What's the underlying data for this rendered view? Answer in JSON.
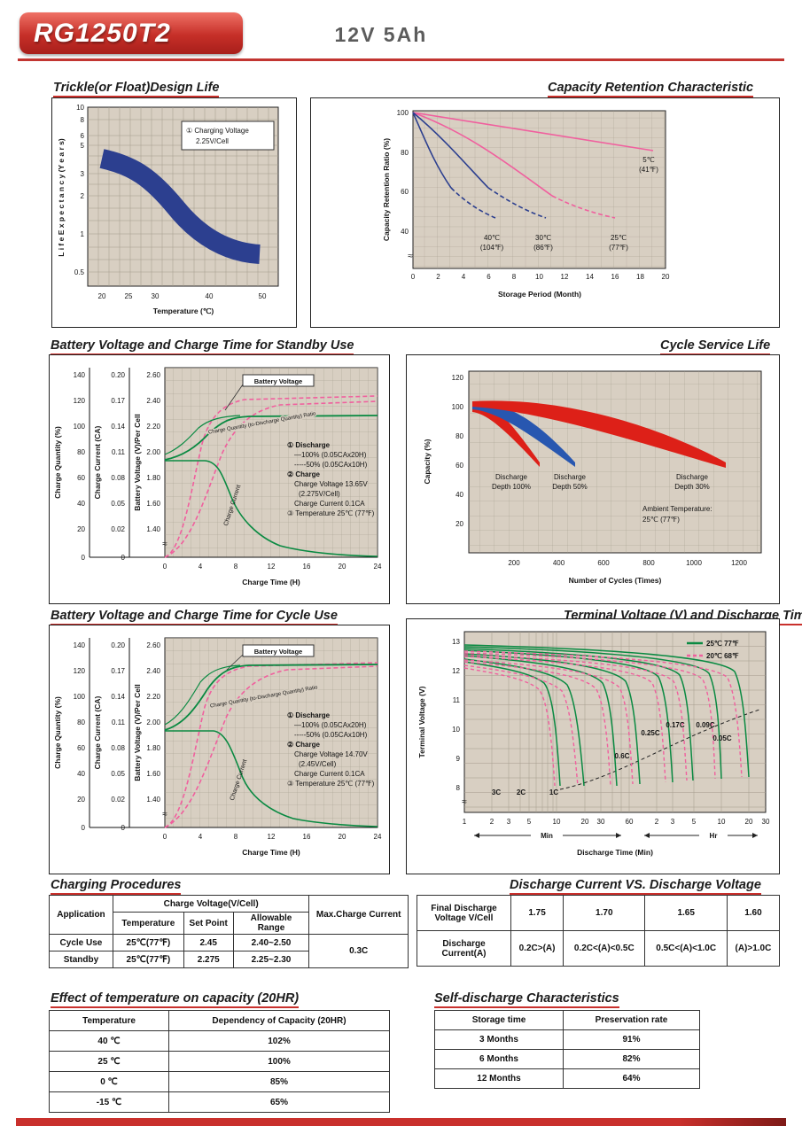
{
  "header": {
    "model": "RG1250T2",
    "spec": "12V  5Ah"
  },
  "colors": {
    "accent_red": "#c9302c",
    "plot_beige": "#d8cfc2",
    "curve_green": "#0a8a42",
    "curve_pink": "#f0609e",
    "curve_navy": "#2c3f8f",
    "band_red": "#dd2018",
    "band_blue": "#2857b0"
  },
  "charts": {
    "trickle": {
      "title": "Trickle(or Float)Design Life",
      "y_ticks": [
        "10",
        "8",
        "6",
        "5",
        "3",
        "2",
        "1",
        "0.5"
      ],
      "x_ticks": [
        "20",
        "25",
        "30",
        "40",
        "50"
      ],
      "x_label": "Temperature (℃)",
      "y_label": "L i f e  E x p e c t a n c y (Y e a r s)",
      "legend_1": "① Charging Voltage",
      "legend_2": "2.25V/Cell"
    },
    "retention": {
      "title": "Capacity Retention Characteristic",
      "y_ticks": [
        "100",
        "80",
        "60",
        "40"
      ],
      "x_ticks": [
        "0",
        "2",
        "4",
        "6",
        "8",
        "10",
        "12",
        "14",
        "16",
        "18",
        "20"
      ],
      "x_label": "Storage Period (Month)",
      "y_label": "Capacity Retention Ratio (%)",
      "break_mark": "≈",
      "series_labels": {
        "s5": [
          "5℃",
          "(41℉)"
        ],
        "s25": [
          "25℃",
          "(77℉)"
        ],
        "s30": [
          "30℃",
          "(86℉)"
        ],
        "s40": [
          "40℃",
          "(104℉)"
        ]
      }
    },
    "standby": {
      "title": "Battery Voltage and Charge Time for Standby Use",
      "qty_label": "Charge Quantity (%)",
      "qty_ticks": [
        "140",
        "120",
        "100",
        "80",
        "60",
        "40",
        "20",
        "0"
      ],
      "cur_label": "Charge Current (CA)",
      "cur_ticks": [
        "0.20",
        "0.17",
        "0.14",
        "0.11",
        "0.08",
        "0.05",
        "0.02",
        "0"
      ],
      "volt_label": "Battery Voltage (V)/Per Cell",
      "volt_ticks": [
        "2.60",
        "2.40",
        "2.20",
        "2.00",
        "1.80",
        "1.60",
        "1.40"
      ],
      "x_ticks": [
        "0",
        "4",
        "8",
        "12",
        "16",
        "20",
        "24"
      ],
      "x_label": "Charge Time (H)",
      "bv_label": "Battery Voltage",
      "qc_label": "Charge Quantity (to-Discharge Quantity) Ratio",
      "cc_label": "Charge Current",
      "break_mark": "≈",
      "notes": [
        "① Discharge",
        "—100% (0.05CAx20H)",
        "-----50% (0.05CAx10H)",
        "② Charge",
        "Charge Voltage 13.65V",
        "(2.275V/Cell)",
        "Charge Current 0.1CA",
        "③ Temperature 25℃ (77℉)"
      ]
    },
    "cycle_life": {
      "title": "Cycle Service Life",
      "y_label": "Capacity (%)",
      "y_ticks": [
        "120",
        "100",
        "80",
        "60",
        "40",
        "20"
      ],
      "x_ticks": [
        "200",
        "400",
        "600",
        "800",
        "1000",
        "1200"
      ],
      "x_label": "Number of Cycles (Times)",
      "band_labels": [
        [
          "Discharge",
          "Depth 100%"
        ],
        [
          "Discharge",
          "Depth 50%"
        ],
        [
          "Discharge",
          "Depth 30%"
        ]
      ],
      "ambient": [
        "Ambient Temperature:",
        "25℃ (77℉)"
      ]
    },
    "cycle_charge": {
      "title": "Battery Voltage and Charge Time for Cycle Use",
      "qty_label": "Charge Quantity (%)",
      "qty_ticks": [
        "140",
        "120",
        "100",
        "80",
        "60",
        "40",
        "20",
        "0"
      ],
      "cur_label": "Charge Current (CA)",
      "cur_ticks": [
        "0.20",
        "0.17",
        "0.14",
        "0.11",
        "0.08",
        "0.05",
        "0.02",
        "0"
      ],
      "volt_label": "Battery Voltage (V)/Per Cell",
      "volt_ticks": [
        "2.60",
        "2.40",
        "2.20",
        "2.00",
        "1.80",
        "1.60",
        "1.40"
      ],
      "x_ticks": [
        "0",
        "4",
        "8",
        "12",
        "16",
        "20",
        "24"
      ],
      "x_label": "Charge Time (H)",
      "bv_label": "Battery Voltage",
      "qc_label": "Charge Quantity (to-Discharge Quantity) Ratio",
      "cc_label": "Charge Current",
      "break_mark": "≈",
      "notes": [
        "① Discharge",
        "—100% (0.05CAx20H)",
        "-----50% (0.05CAx10H)",
        "② Charge",
        "Charge Voltage 14.70V",
        "(2.45V/Cell)",
        "Charge Current 0.1CA",
        "③ Temperature 25℃ (77℉)"
      ]
    },
    "terminal": {
      "title": "Terminal Voltage (V) and Discharge Time",
      "y_label": "Terminal Voltage (V)",
      "y_ticks": [
        "13",
        "12",
        "11",
        "10",
        "9",
        "8"
      ],
      "x_ticks_min": [
        "1",
        "2",
        "3",
        "5",
        "10",
        "20",
        "30",
        "60"
      ],
      "x_ticks_hr": [
        "2",
        "3",
        "5",
        "10",
        "20",
        "30"
      ],
      "min_label": "Min",
      "hr_label": "Hr",
      "x_label": "Discharge Time (Min)",
      "break_mark": "≈",
      "legend": [
        "25℃ 77℉",
        "20℃ 68℉"
      ],
      "rate_labels": [
        "3C",
        "2C",
        "1C",
        "0.6C",
        "0.25C",
        "0.17C",
        "0.09C",
        "0.05C"
      ]
    }
  },
  "tables": {
    "charging": {
      "title": "Charging Procedures",
      "col_application": "Application",
      "col_voltage": "Charge Voltage(V/Cell)",
      "col_temp": "Temperature",
      "col_set": "Set Point",
      "col_range": "Allowable Range",
      "col_max": "Max.Charge Current",
      "rows": [
        {
          "app": "Cycle Use",
          "temp": "25℃(77℉)",
          "set": "2.45",
          "range": "2.40~2.50"
        },
        {
          "app": "Standby",
          "temp": "25℃(77℉)",
          "set": "2.275",
          "range": "2.25~2.30"
        }
      ],
      "max_current": "0.3C"
    },
    "discharge": {
      "title": "Discharge Current VS. Discharge Voltage",
      "row1_label": [
        "Final Discharge",
        "Voltage V/Cell"
      ],
      "row1_values": [
        "1.75",
        "1.70",
        "1.65",
        "1.60"
      ],
      "row2_label": [
        "Discharge",
        "Current(A)"
      ],
      "row2_values": [
        "0.2C>(A)",
        "0.2C<(A)<0.5C",
        "0.5C<(A)<1.0C",
        "(A)>1.0C"
      ]
    },
    "temp_capacity": {
      "title": "Effect of temperature on capacity (20HR)",
      "headers": [
        "Temperature",
        "Dependency of Capacity (20HR)"
      ],
      "rows": [
        [
          "40 ℃",
          "102%"
        ],
        [
          "25 ℃",
          "100%"
        ],
        [
          "0 ℃",
          "85%"
        ],
        [
          "-15 ℃",
          "65%"
        ]
      ]
    },
    "self_discharge": {
      "title": "Self-discharge Characteristics",
      "headers": [
        "Storage time",
        "Preservation rate"
      ],
      "rows": [
        [
          "3 Months",
          "91%"
        ],
        [
          "6 Months",
          "82%"
        ],
        [
          "12 Months",
          "64%"
        ]
      ]
    }
  },
  "chart_data": [
    {
      "type": "area",
      "id": "trickle_design_life",
      "title": "Trickle(or Float)Design Life",
      "xlabel": "Temperature (℃)",
      "ylabel": "Life Expectancy (Years)",
      "y_scale": "log",
      "x_ticks": [
        20,
        25,
        30,
        40,
        50
      ],
      "y_ticks": [
        0.5,
        1,
        2,
        3,
        5,
        6,
        8,
        10
      ],
      "annotation": "① Charging Voltage 2.25V/Cell",
      "band": {
        "x": [
          20,
          25,
          30,
          35,
          40,
          45,
          50
        ],
        "upper": [
          5.5,
          5.2,
          4.0,
          2.5,
          1.7,
          1.35,
          1.25
        ],
        "lower": [
          3.6,
          3.3,
          2.4,
          1.5,
          1.0,
          0.85,
          0.8
        ]
      }
    },
    {
      "type": "line",
      "id": "capacity_retention",
      "title": "Capacity Retention Characteristic",
      "xlabel": "Storage Period (Month)",
      "ylabel": "Capacity Retention Ratio (%)",
      "xlim": [
        0,
        20
      ],
      "ylim": [
        40,
        100
      ],
      "series": [
        {
          "name": "5℃ (41℉)",
          "style": "pink solid",
          "points": [
            [
              0,
              100
            ],
            [
              19,
              81
            ]
          ]
        },
        {
          "name": "25℃ (77℉)",
          "style": "pink, dashed after 11mo",
          "points": [
            [
              0,
              100
            ],
            [
              6,
              80
            ],
            [
              11,
              60
            ],
            [
              16,
              47
            ]
          ]
        },
        {
          "name": "30℃ (86℉)",
          "style": "blue, dashed after 6mo",
          "points": [
            [
              0,
              100
            ],
            [
              4,
              78
            ],
            [
              6,
              63
            ],
            [
              10.5,
              47
            ]
          ]
        },
        {
          "name": "40℃ (104℉)",
          "style": "blue, dashed after 3mo",
          "points": [
            [
              0,
              100
            ],
            [
              2,
              78
            ],
            [
              3.5,
              62
            ],
            [
              7,
              47
            ]
          ]
        }
      ]
    },
    {
      "type": "line",
      "id": "charge_standby",
      "title": "Battery Voltage and Charge Time for Standby Use",
      "xlabel": "Charge Time (H)",
      "axes": [
        "Charge Quantity (%) 0-140",
        "Charge Current (CA) 0-0.20",
        "Battery Voltage (V)/Per Cell 1.40-2.60"
      ],
      "series": [
        {
          "name": "Battery Voltage (V/cell)",
          "points": [
            [
              0,
              1.95
            ],
            [
              4,
              2.05
            ],
            [
              8,
              2.23
            ],
            [
              12,
              2.27
            ],
            [
              24,
              2.275
            ]
          ]
        },
        {
          "name": "Charge Current (CA)",
          "points": [
            [
              0,
              0.1
            ],
            [
              5,
              0.1
            ],
            [
              8,
              0.06
            ],
            [
              12,
              0.02
            ],
            [
              24,
              0.005
            ]
          ]
        },
        {
          "name": "Charge Quantity 50% discharge (%)",
          "points": [
            [
              0,
              0
            ],
            [
              4,
              70
            ],
            [
              8,
              105
            ],
            [
              12,
              115
            ],
            [
              24,
              120
            ]
          ]
        },
        {
          "name": "Charge Quantity 100% discharge (%)",
          "points": [
            [
              0,
              0
            ],
            [
              4,
              45
            ],
            [
              8,
              85
            ],
            [
              12,
              105
            ],
            [
              24,
              115
            ]
          ]
        }
      ],
      "conditions": [
        "Discharge 100% (0.05CAx20H) / 50% (0.05CAx10H)",
        "Charge Voltage 13.65V (2.275V/Cell)",
        "Charge Current 0.1CA",
        "Temperature 25℃ (77℉)"
      ]
    },
    {
      "type": "area",
      "id": "cycle_service_life",
      "title": "Cycle Service Life",
      "xlabel": "Number of Cycles (Times)",
      "ylabel": "Capacity (%)",
      "ambient": "25℃ (77℉)",
      "series": [
        {
          "name": "Discharge Depth 100%",
          "points": [
            [
              0,
              100
            ],
            [
              100,
              90
            ],
            [
              250,
              60
            ]
          ]
        },
        {
          "name": "Discharge Depth 50%",
          "points": [
            [
              0,
              100
            ],
            [
              200,
              88
            ],
            [
              450,
              60
            ]
          ]
        },
        {
          "name": "Discharge Depth 30%",
          "points": [
            [
              0,
              100
            ],
            [
              500,
              90
            ],
            [
              1150,
              60
            ]
          ]
        }
      ]
    },
    {
      "type": "line",
      "id": "charge_cycle",
      "title": "Battery Voltage and Charge Time for Cycle Use",
      "xlabel": "Charge Time (H)",
      "axes": [
        "Charge Quantity (%) 0-140",
        "Charge Current (CA) 0-0.20",
        "Battery Voltage (V)/Per Cell 1.40-2.60"
      ],
      "series": [
        {
          "name": "Battery Voltage (V/cell)",
          "points": [
            [
              0,
              1.95
            ],
            [
              4,
              2.1
            ],
            [
              8,
              2.4
            ],
            [
              10,
              2.45
            ],
            [
              24,
              2.45
            ]
          ]
        },
        {
          "name": "Charge Current (CA)",
          "points": [
            [
              0,
              0.1
            ],
            [
              6,
              0.1
            ],
            [
              10,
              0.05
            ],
            [
              14,
              0.015
            ],
            [
              24,
              0.005
            ]
          ]
        },
        {
          "name": "Charge Quantity 50% discharge (%)",
          "points": [
            [
              0,
              0
            ],
            [
              4,
              70
            ],
            [
              8,
              108
            ],
            [
              12,
              118
            ],
            [
              24,
              122
            ]
          ]
        },
        {
          "name": "Charge Quantity 100% discharge (%)",
          "points": [
            [
              0,
              0
            ],
            [
              4,
              45
            ],
            [
              8,
              88
            ],
            [
              14,
              110
            ],
            [
              24,
              118
            ]
          ]
        }
      ],
      "conditions": [
        "Discharge 100% (0.05CAx20H) / 50% (0.05CAx10H)",
        "Charge Voltage 14.70V (2.45V/Cell)",
        "Charge Current 0.1CA",
        "Temperature 25℃ (77℉)"
      ]
    },
    {
      "type": "line",
      "id": "terminal_voltage_discharge",
      "title": "Terminal Voltage (V) and Discharge Time",
      "xlabel": "Discharge Time (Min)",
      "ylabel": "Terminal Voltage (V)",
      "x_scale": "log",
      "ylim": [
        8,
        13
      ],
      "legend": [
        "25℃ 77℉ solid green",
        "20℃ 68℉ dashed pink"
      ],
      "discharge_rates": [
        "3C",
        "2C",
        "1C",
        "0.6C",
        "0.25C",
        "0.17C",
        "0.09C",
        "0.05C"
      ],
      "approx_runtime_min": {
        "3C": 12,
        "2C": 20,
        "1C": 45,
        "0.6C": 80,
        "0.25C": 210,
        "0.17C": 320,
        "0.09C": 600,
        "0.05C": 1150
      }
    }
  ]
}
